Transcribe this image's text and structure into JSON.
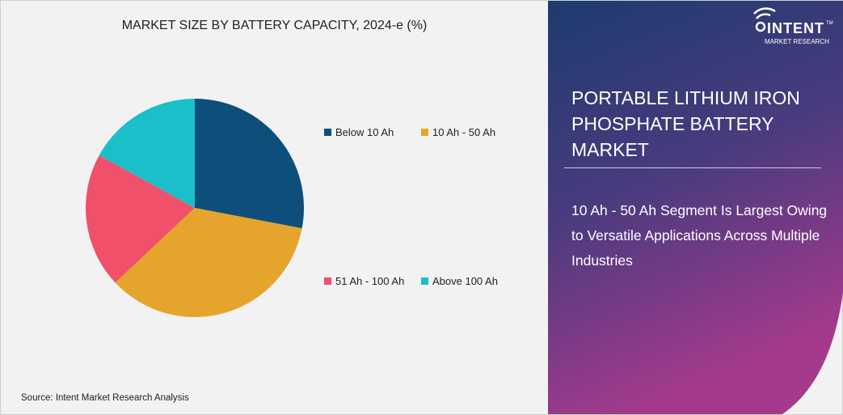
{
  "chart_data": {
    "type": "pie",
    "title": "MARKET SIZE BY BATTERY CAPACITY, 2024-e (%)",
    "categories": [
      "Below 10 Ah",
      "10 Ah - 50 Ah",
      "51 Ah - 100 Ah",
      "Above 100 Ah"
    ],
    "values": [
      28,
      35,
      20,
      17
    ],
    "colors": [
      "#0d4f7a",
      "#e5a52d",
      "#f0506a",
      "#1bbfc9"
    ],
    "legend_placement": "right"
  },
  "source": "Source: Intent Market Research Analysis",
  "panel": {
    "title": "PORTABLE LITHIUM IRON PHOSPHATE BATTERY MARKET",
    "subtitle": "10 Ah - 50 Ah Segment Is Largest Owing to Versatile Applications Across Multiple Industries"
  },
  "logo": {
    "name": "INTENT",
    "tagline": "MARKET RESEARCH",
    "mark": "TM"
  }
}
